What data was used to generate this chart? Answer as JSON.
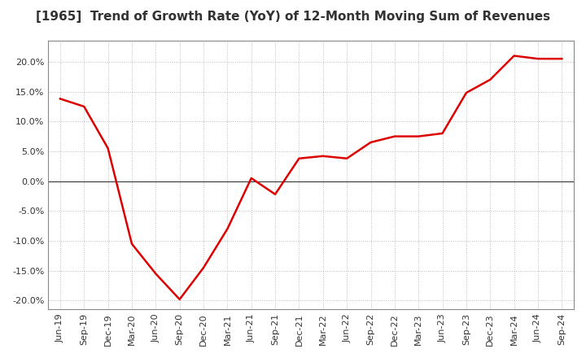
{
  "title": "[1965]  Trend of Growth Rate (YoY) of 12-Month Moving Sum of Revenues",
  "title_fontsize": 11,
  "line_color": "#dd0000",
  "line_width": 1.8,
  "background_color": "#ffffff",
  "plot_bg_color": "#ffffff",
  "grid_color": "#bbbbbb",
  "ylim": [
    -0.215,
    0.235
  ],
  "yticks": [
    -0.2,
    -0.15,
    -0.1,
    -0.05,
    0.0,
    0.05,
    0.1,
    0.15,
    0.2
  ],
  "labels": [
    "Jun-19",
    "Sep-19",
    "Dec-19",
    "Mar-20",
    "Jun-20",
    "Sep-20",
    "Dec-20",
    "Mar-21",
    "Jun-21",
    "Sep-21",
    "Dec-21",
    "Mar-22",
    "Jun-22",
    "Sep-22",
    "Dec-22",
    "Mar-23",
    "Jun-23",
    "Sep-23",
    "Dec-23",
    "Mar-24",
    "Jun-24",
    "Sep-24"
  ],
  "values": [
    0.138,
    0.125,
    0.055,
    -0.105,
    -0.155,
    -0.198,
    -0.145,
    -0.08,
    0.005,
    -0.022,
    0.038,
    0.042,
    0.038,
    0.065,
    0.075,
    0.075,
    0.08,
    0.148,
    0.17,
    0.21,
    0.205,
    0.205
  ]
}
